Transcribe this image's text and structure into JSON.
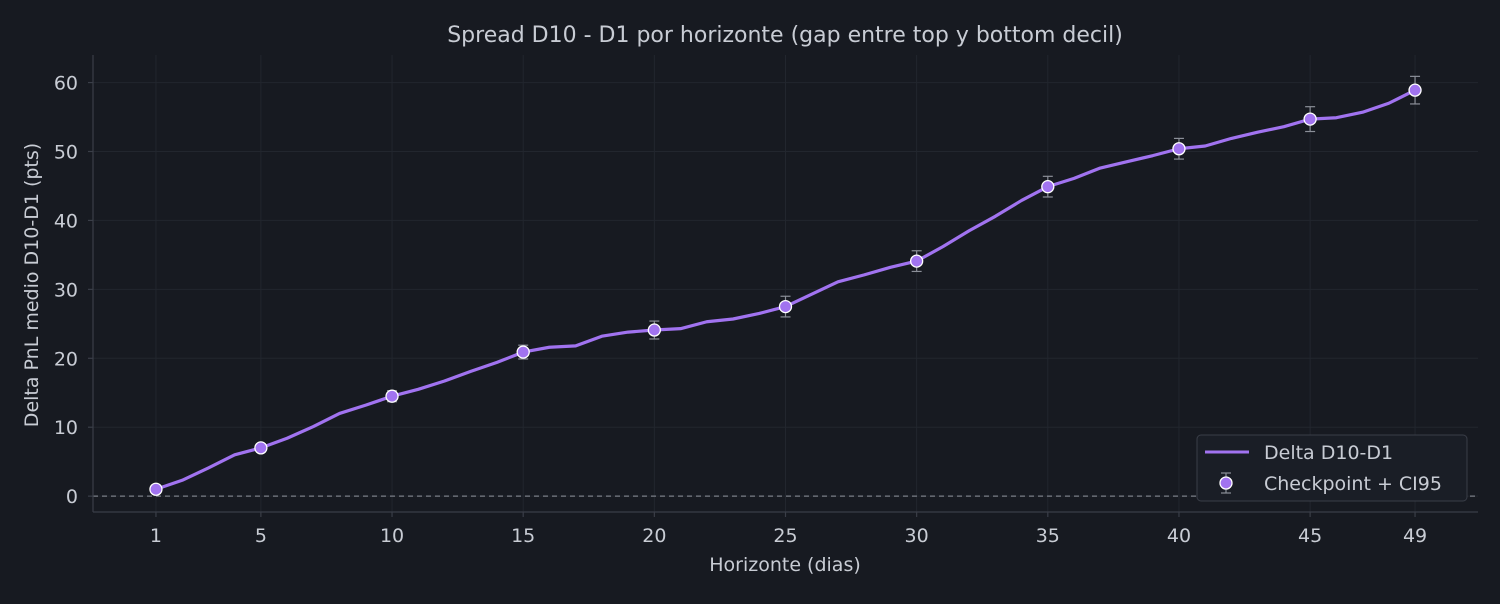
{
  "chart_data": {
    "type": "line",
    "title": "Spread D10 - D1 por horizonte (gap entre top y bottom decil)",
    "xlabel": "Horizonte (dias)",
    "ylabel": "Delta PnL medio D10-D1 (pts)",
    "xlim": [
      -1.4,
      51.4
    ],
    "ylim": [
      -2.3,
      64.0
    ],
    "x_ticks": [
      1,
      5,
      10,
      15,
      20,
      25,
      30,
      35,
      40,
      45,
      49
    ],
    "y_ticks": [
      0,
      10,
      20,
      30,
      40,
      50,
      60
    ],
    "grid": true,
    "reference_line": {
      "y": 0,
      "style": "dashed"
    },
    "legend": {
      "position": "bottom-right",
      "entries": [
        "Delta D10-D1",
        "Checkpoint + CI95"
      ]
    },
    "series": [
      {
        "name": "Delta D10-D1",
        "kind": "line",
        "color": "#a173f0",
        "x": [
          1,
          2,
          3,
          4,
          5,
          6,
          7,
          8,
          9,
          10,
          11,
          12,
          13,
          14,
          15,
          16,
          17,
          18,
          19,
          20,
          21,
          22,
          23,
          24,
          25,
          26,
          27,
          28,
          29,
          30,
          31,
          32,
          33,
          34,
          35,
          36,
          37,
          38,
          39,
          40,
          41,
          42,
          43,
          44,
          45,
          46,
          47,
          48,
          49
        ],
        "values": [
          1.0,
          2.3,
          4.1,
          6.0,
          7.0,
          8.4,
          10.1,
          12.0,
          13.2,
          14.5,
          15.5,
          16.7,
          18.1,
          19.4,
          20.9,
          21.6,
          21.8,
          23.2,
          23.8,
          24.1,
          24.3,
          25.3,
          25.7,
          26.5,
          27.5,
          29.3,
          31.1,
          32.1,
          33.2,
          34.1,
          36.2,
          38.5,
          40.6,
          42.9,
          44.9,
          46.1,
          47.6,
          48.5,
          49.4,
          50.4,
          50.8,
          51.9,
          52.8,
          53.6,
          54.7,
          54.9,
          55.7,
          57.0,
          58.9
        ]
      },
      {
        "name": "Checkpoint + CI95",
        "kind": "errorbar",
        "color": "#a173f0",
        "x": [
          1,
          5,
          10,
          15,
          20,
          25,
          30,
          35,
          40,
          45,
          49
        ],
        "values": [
          1.0,
          7.0,
          14.5,
          20.9,
          24.1,
          27.5,
          34.1,
          44.9,
          50.4,
          54.7,
          58.9
        ],
        "ci_low": [
          0.4,
          6.4,
          13.7,
          19.9,
          22.8,
          26.0,
          32.6,
          43.4,
          48.9,
          52.9,
          56.9
        ],
        "ci_high": [
          1.6,
          7.6,
          15.3,
          21.9,
          25.4,
          29.0,
          35.6,
          46.4,
          51.9,
          56.5,
          60.9
        ]
      }
    ],
    "colors": {
      "background": "#171a21",
      "axis": "#3a3e48",
      "grid": "#22262e",
      "text": "#c8ccd4",
      "errorbar": "#8b8f98",
      "zero_line": "#7a7e87",
      "legend_bg": "#1a1e26",
      "legend_border": "#3a3e48"
    }
  }
}
